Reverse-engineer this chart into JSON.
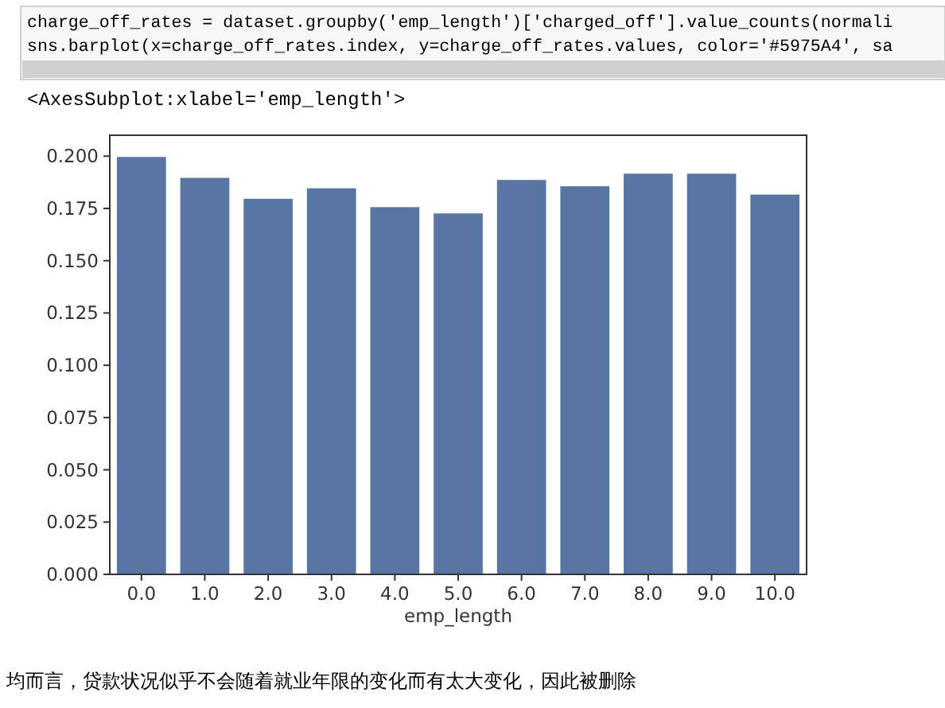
{
  "chart_data": {
    "type": "bar",
    "xlabel": "emp_length",
    "categories": [
      "0.0",
      "1.0",
      "2.0",
      "3.0",
      "4.0",
      "5.0",
      "6.0",
      "7.0",
      "8.0",
      "9.0",
      "10.0"
    ],
    "values": [
      0.2,
      0.19,
      0.18,
      0.185,
      0.176,
      0.173,
      0.189,
      0.186,
      0.192,
      0.192,
      0.182
    ],
    "color": "#5975a4",
    "ylim": [
      0,
      0.21
    ],
    "yticks": [
      {
        "value": 0,
        "label": "0.000"
      },
      {
        "value": 0.025,
        "label": "0.025"
      },
      {
        "value": 0.05,
        "label": "0.050"
      },
      {
        "value": 0.075,
        "label": "0.075"
      },
      {
        "value": 0.1,
        "label": "0.100"
      },
      {
        "value": 0.125,
        "label": "0.125"
      },
      {
        "value": 0.15,
        "label": "0.150"
      },
      {
        "value": 0.175,
        "label": "0.175"
      },
      {
        "value": 0.2,
        "label": "0.200"
      }
    ],
    "grid": false,
    "annotations": [
      "charge_off_rates = dataset.groupby('emp_length')['charged_off'].value_counts(normali",
      "sns.barplot(x=charge_off_rates.index, y=charge_off_rates.values, color='#5975A4', sa",
      "<AxesSubplot:xlabel='emp_length'>",
      "均而言，贷款状况似乎不会随着就业年限的变化而有太大变化，因此被删除"
    ]
  }
}
